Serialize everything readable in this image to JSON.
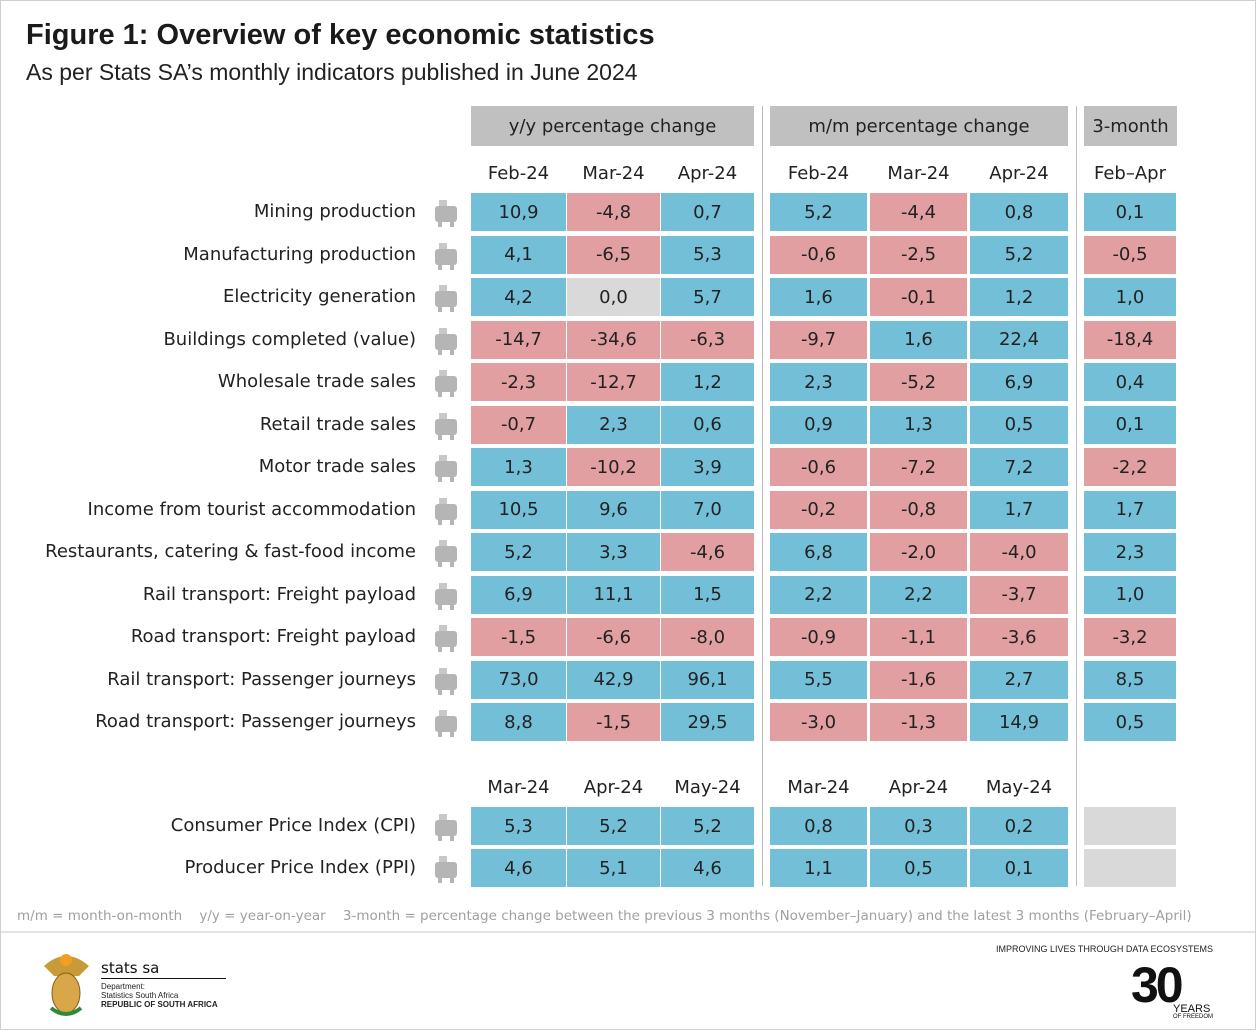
{
  "title": "Figure 1: Overview of key economic statistics",
  "subtitle": "As per Stats SA’s monthly indicators published in June 2024",
  "groups": {
    "yy": "y/y percentage change",
    "mm": "m/m percentage change",
    "three": "3-month"
  },
  "colors": {
    "positive": "#74bfd8",
    "negative": "#e19fa1",
    "zero": "#d9d9d9",
    "empty": "#d9d9d9"
  },
  "months_top": [
    "Feb-24",
    "Mar-24",
    "Apr-24",
    "Feb-24",
    "Mar-24",
    "Apr-24",
    "Feb–Apr"
  ],
  "months_bottom": [
    "Mar-24",
    "Apr-24",
    "May-24",
    "Mar-24",
    "Apr-24",
    "May-24"
  ],
  "chart_data": {
    "type": "table",
    "rows": [
      {
        "label": "Mining production",
        "icon": "miner-icon",
        "values": [
          "10,9",
          "-4,8",
          "0,7",
          "5,2",
          "-4,4",
          "0,8",
          "0,1"
        ]
      },
      {
        "label": "Manufacturing production",
        "icon": "factory-icon",
        "values": [
          "4,1",
          "-6,5",
          "5,3",
          "-0,6",
          "-2,5",
          "5,2",
          "-0,5"
        ]
      },
      {
        "label": "Electricity generation",
        "icon": "power-plant-icon",
        "values": [
          "4,2",
          "0,0",
          "5,7",
          "1,6",
          "-0,1",
          "1,2",
          "1,0"
        ]
      },
      {
        "label": "Buildings completed (value)",
        "icon": "crane-icon",
        "values": [
          "-14,7",
          "-34,6",
          "-6,3",
          "-9,7",
          "1,6",
          "22,4",
          "-18,4"
        ]
      },
      {
        "label": "Wholesale trade sales",
        "icon": "trolley-icon",
        "values": [
          "-2,3",
          "-12,7",
          "1,2",
          "2,3",
          "-5,2",
          "6,9",
          "0,4"
        ]
      },
      {
        "label": "Retail trade sales",
        "icon": "cart-icon",
        "values": [
          "-0,7",
          "2,3",
          "0,6",
          "0,9",
          "1,3",
          "0,5",
          "0,1"
        ]
      },
      {
        "label": "Motor trade sales",
        "icon": "car-icon",
        "values": [
          "1,3",
          "-10,2",
          "3,9",
          "-0,6",
          "-7,2",
          "7,2",
          "-2,2"
        ]
      },
      {
        "label": "Income from tourist accommodation",
        "icon": "bed-icon",
        "values": [
          "10,5",
          "9,6",
          "7,0",
          "-0,2",
          "-0,8",
          "1,7",
          "1,7"
        ]
      },
      {
        "label": "Restaurants, catering & fast-food income",
        "icon": "plate-icon",
        "values": [
          "5,2",
          "3,3",
          "-4,6",
          "6,8",
          "-2,0",
          "-4,0",
          "2,3"
        ]
      },
      {
        "label": "Rail transport: Freight payload",
        "icon": "freight-train-icon",
        "values": [
          "6,9",
          "11,1",
          "1,5",
          "2,2",
          "2,2",
          "-3,7",
          "1,0"
        ]
      },
      {
        "label": "Road transport: Freight payload",
        "icon": "truck-icon",
        "values": [
          "-1,5",
          "-6,6",
          "-8,0",
          "-0,9",
          "-1,1",
          "-3,6",
          "-3,2"
        ]
      },
      {
        "label": "Rail transport: Passenger journeys",
        "icon": "passenger-train-icon",
        "values": [
          "73,0",
          "42,9",
          "96,1",
          "5,5",
          "-1,6",
          "2,7",
          "8,5"
        ]
      },
      {
        "label": "Road transport: Passenger journeys",
        "icon": "bus-icon",
        "values": [
          "8,8",
          "-1,5",
          "29,5",
          "-3,0",
          "-1,3",
          "14,9",
          "0,5"
        ]
      }
    ],
    "price_rows": [
      {
        "label": "Consumer Price Index (CPI)",
        "icon": "grocery-basket-icon",
        "values": [
          "5,3",
          "5,2",
          "5,2",
          "0,8",
          "0,3",
          "0,2",
          ""
        ]
      },
      {
        "label": "Producer Price Index (PPI)",
        "icon": "gear-icon",
        "values": [
          "4,6",
          "5,1",
          "4,6",
          "1,1",
          "0,5",
          "0,1",
          ""
        ]
      }
    ]
  },
  "footnote": "m/m = month-on-month    y/y = year-on-year    3-month = percentage change between the previous 3 months (November–January) and the latest 3 months (February–April)",
  "footer": {
    "brand": "stats sa",
    "dept": "Department:",
    "dept_name": "Statistics South Africa",
    "republic": "REPUBLIC OF SOUTH AFRICA",
    "tagline": "IMPROVING LIVES THROUGH DATA ECOSYSTEMS",
    "thirty": "30",
    "years": "YEARS",
    "years_sub": "OF FREEDOM"
  }
}
